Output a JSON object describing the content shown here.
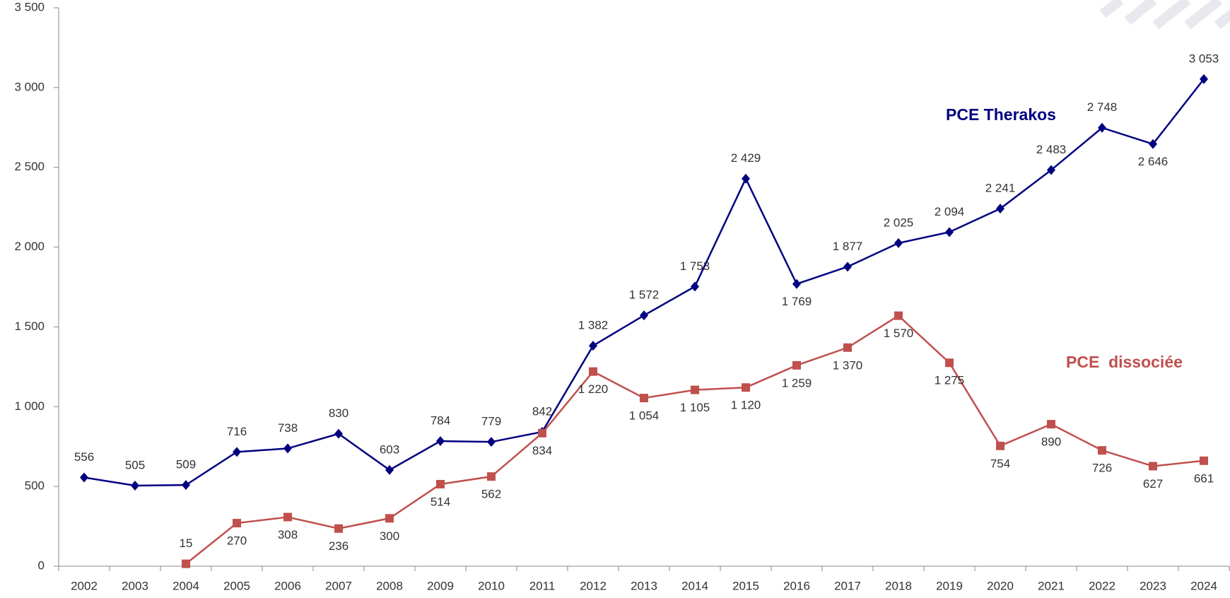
{
  "chart_data": {
    "type": "line",
    "categories": [
      "2002",
      "2003",
      "2004",
      "2005",
      "2006",
      "2007",
      "2008",
      "2009",
      "2010",
      "2011",
      "2012",
      "2013",
      "2014",
      "2015",
      "2016",
      "2017",
      "2018",
      "2019",
      "2020",
      "2021",
      "2022",
      "2023",
      "2024"
    ],
    "series": [
      {
        "name": "PCE Therakos",
        "color": "#000080",
        "values": [
          556,
          505,
          509,
          716,
          738,
          830,
          603,
          784,
          779,
          842,
          1382,
          1572,
          1753,
          2429,
          1769,
          1877,
          2025,
          2094,
          2241,
          2483,
          2748,
          2646,
          3053
        ],
        "value_labels": [
          "556",
          "505",
          "509",
          "716",
          "738",
          "830",
          "603",
          "784",
          "779",
          "842",
          "1 382",
          "1 572",
          "1 753",
          "2 429",
          "1 769",
          "1 877",
          "2 025",
          "2 094",
          "2 241",
          "2 483",
          "2 748",
          "2 646",
          "3 053"
        ]
      },
      {
        "name": "PCE  dissociée",
        "color": "#c0504d",
        "values": [
          null,
          null,
          15,
          270,
          308,
          236,
          300,
          514,
          562,
          834,
          1220,
          1054,
          1105,
          1120,
          1259,
          1370,
          1570,
          1275,
          754,
          890,
          726,
          627,
          661
        ],
        "value_labels": [
          null,
          null,
          "15",
          "270",
          "308",
          "236",
          "300",
          "514",
          "562",
          "834",
          "1 220",
          "1 054",
          "1 105",
          "1 120",
          "1 259",
          "1 370",
          "1 570",
          "1 275",
          "754",
          "890",
          "726",
          "627",
          "661"
        ]
      }
    ],
    "ylim": [
      0,
      3500
    ],
    "yticks": [
      {
        "value": 0,
        "label": "0"
      },
      {
        "value": 500,
        "label": "500"
      },
      {
        "value": 1000,
        "label": "1 000"
      },
      {
        "value": 1500,
        "label": "1 500"
      },
      {
        "value": 2000,
        "label": "2 000"
      },
      {
        "value": 2500,
        "label": "2 500"
      },
      {
        "value": 3000,
        "label": "3 000"
      },
      {
        "value": 3500,
        "label": "3 500"
      }
    ]
  }
}
